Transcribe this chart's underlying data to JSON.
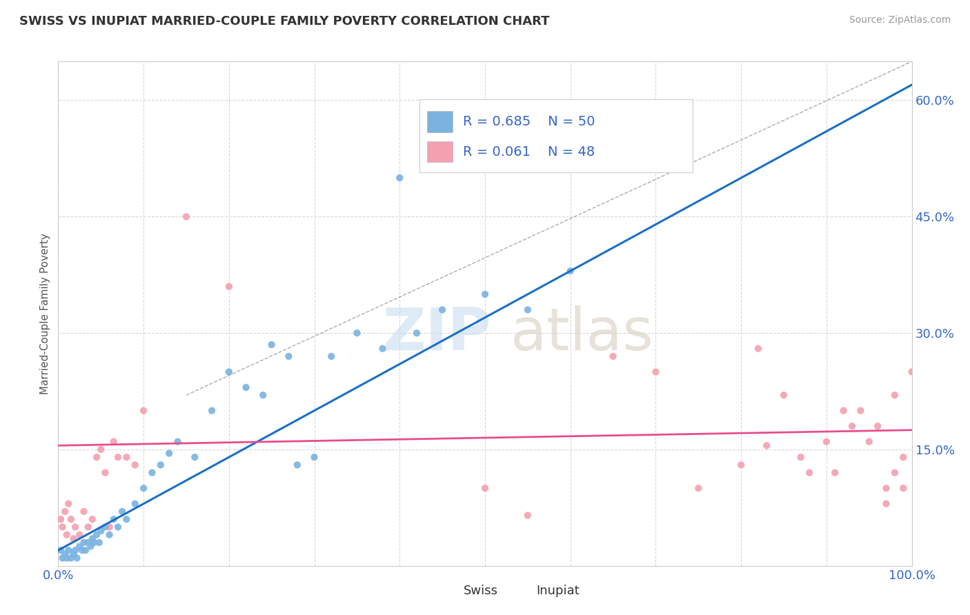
{
  "title": "SWISS VS INUPIAT MARRIED-COUPLE FAMILY POVERTY CORRELATION CHART",
  "source": "Source: ZipAtlas.com",
  "ylabel": "Married-Couple Family Poverty",
  "xlim": [
    0,
    1.0
  ],
  "ylim": [
    0,
    0.65
  ],
  "xticks": [
    0.0,
    0.1,
    0.2,
    0.3,
    0.4,
    0.5,
    0.6,
    0.7,
    0.8,
    0.9,
    1.0
  ],
  "ytick_positions": [
    0.0,
    0.15,
    0.3,
    0.45,
    0.6
  ],
  "ytick_labels": [
    "",
    "15.0%",
    "30.0%",
    "45.0%",
    "60.0%"
  ],
  "background_color": "#ffffff",
  "grid_color": "#d8d8d8",
  "swiss_color": "#7ab3e0",
  "inupiat_color": "#f4a0b0",
  "swiss_line_color": "#1a6fc4",
  "inupiat_line_color": "#e84d8a",
  "swiss_R": 0.685,
  "swiss_N": 50,
  "inupiat_R": 0.061,
  "inupiat_N": 48,
  "legend_label_swiss": "Swiss",
  "legend_label_inupiat": "Inupiat",
  "legend_text_color": "#3366cc",
  "tick_color": "#3366cc",
  "swiss_scatter_x": [
    0.003,
    0.005,
    0.008,
    0.01,
    0.012,
    0.015,
    0.018,
    0.02,
    0.022,
    0.025,
    0.028,
    0.03,
    0.032,
    0.035,
    0.038,
    0.04,
    0.042,
    0.045,
    0.048,
    0.05,
    0.055,
    0.06,
    0.065,
    0.07,
    0.075,
    0.08,
    0.09,
    0.1,
    0.11,
    0.12,
    0.13,
    0.14,
    0.16,
    0.18,
    0.2,
    0.22,
    0.24,
    0.25,
    0.27,
    0.28,
    0.3,
    0.32,
    0.35,
    0.38,
    0.4,
    0.42,
    0.45,
    0.5,
    0.55,
    0.6
  ],
  "swiss_scatter_y": [
    0.02,
    0.01,
    0.015,
    0.01,
    0.02,
    0.01,
    0.015,
    0.02,
    0.01,
    0.025,
    0.02,
    0.03,
    0.02,
    0.03,
    0.025,
    0.035,
    0.03,
    0.04,
    0.03,
    0.045,
    0.05,
    0.04,
    0.06,
    0.05,
    0.07,
    0.06,
    0.08,
    0.1,
    0.12,
    0.13,
    0.145,
    0.16,
    0.14,
    0.2,
    0.25,
    0.23,
    0.22,
    0.285,
    0.27,
    0.13,
    0.14,
    0.27,
    0.3,
    0.28,
    0.5,
    0.3,
    0.33,
    0.35,
    0.33,
    0.38
  ],
  "inupiat_scatter_x": [
    0.003,
    0.005,
    0.008,
    0.01,
    0.012,
    0.015,
    0.018,
    0.02,
    0.025,
    0.03,
    0.035,
    0.04,
    0.045,
    0.05,
    0.055,
    0.06,
    0.065,
    0.07,
    0.08,
    0.09,
    0.1,
    0.15,
    0.2,
    0.5,
    0.55,
    0.65,
    0.7,
    0.75,
    0.8,
    0.82,
    0.83,
    0.85,
    0.87,
    0.88,
    0.9,
    0.91,
    0.92,
    0.93,
    0.94,
    0.95,
    0.96,
    0.97,
    0.97,
    0.98,
    0.98,
    0.99,
    0.99,
    1.0
  ],
  "inupiat_scatter_y": [
    0.06,
    0.05,
    0.07,
    0.04,
    0.08,
    0.06,
    0.035,
    0.05,
    0.04,
    0.07,
    0.05,
    0.06,
    0.14,
    0.15,
    0.12,
    0.05,
    0.16,
    0.14,
    0.14,
    0.13,
    0.2,
    0.45,
    0.36,
    0.1,
    0.065,
    0.27,
    0.25,
    0.1,
    0.13,
    0.28,
    0.155,
    0.22,
    0.14,
    0.12,
    0.16,
    0.12,
    0.2,
    0.18,
    0.2,
    0.16,
    0.18,
    0.08,
    0.1,
    0.22,
    0.12,
    0.1,
    0.14,
    0.25
  ]
}
